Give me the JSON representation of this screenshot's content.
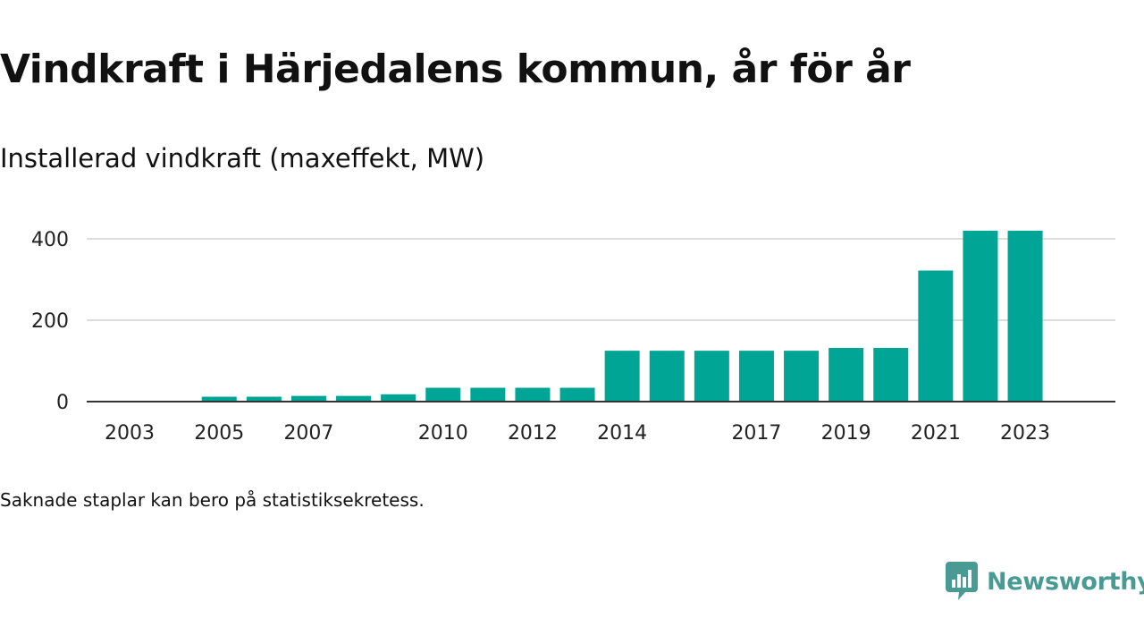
{
  "title": "Vindkraft i Härjedalens kommun, år för år",
  "subtitle": "Installerad vindkraft (maxeffekt, MW)",
  "footnote": "Saknade staplar kan bero på statistiksekretess.",
  "brand": {
    "name": "Newsworthy",
    "color": "#4a9a94",
    "icon": "newsworthy-logo-icon"
  },
  "chart_data": {
    "type": "bar",
    "categories": [
      "2003",
      "2004",
      "2005",
      "2006",
      "2007",
      "2008",
      "2009",
      "2010",
      "2011",
      "2012",
      "2013",
      "2014",
      "2015",
      "2016",
      "2017",
      "2018",
      "2019",
      "2020",
      "2021",
      "2022",
      "2023"
    ],
    "values": [
      0,
      0,
      12,
      12,
      14,
      14,
      18,
      34,
      34,
      34,
      34,
      125,
      125,
      125,
      125,
      125,
      132,
      132,
      322,
      420,
      420
    ],
    "x_tick_labels": [
      "2003",
      "2005",
      "2007",
      "2010",
      "2012",
      "2014",
      "2017",
      "2019",
      "2021",
      "2023"
    ],
    "y_ticks": [
      0,
      200,
      400
    ],
    "ylim": [
      0,
      440
    ],
    "xlabel": "",
    "ylabel": "",
    "grid": true,
    "bar_color": "#00a596",
    "gridline_color": "#dddddd",
    "axis_color": "#333333"
  }
}
